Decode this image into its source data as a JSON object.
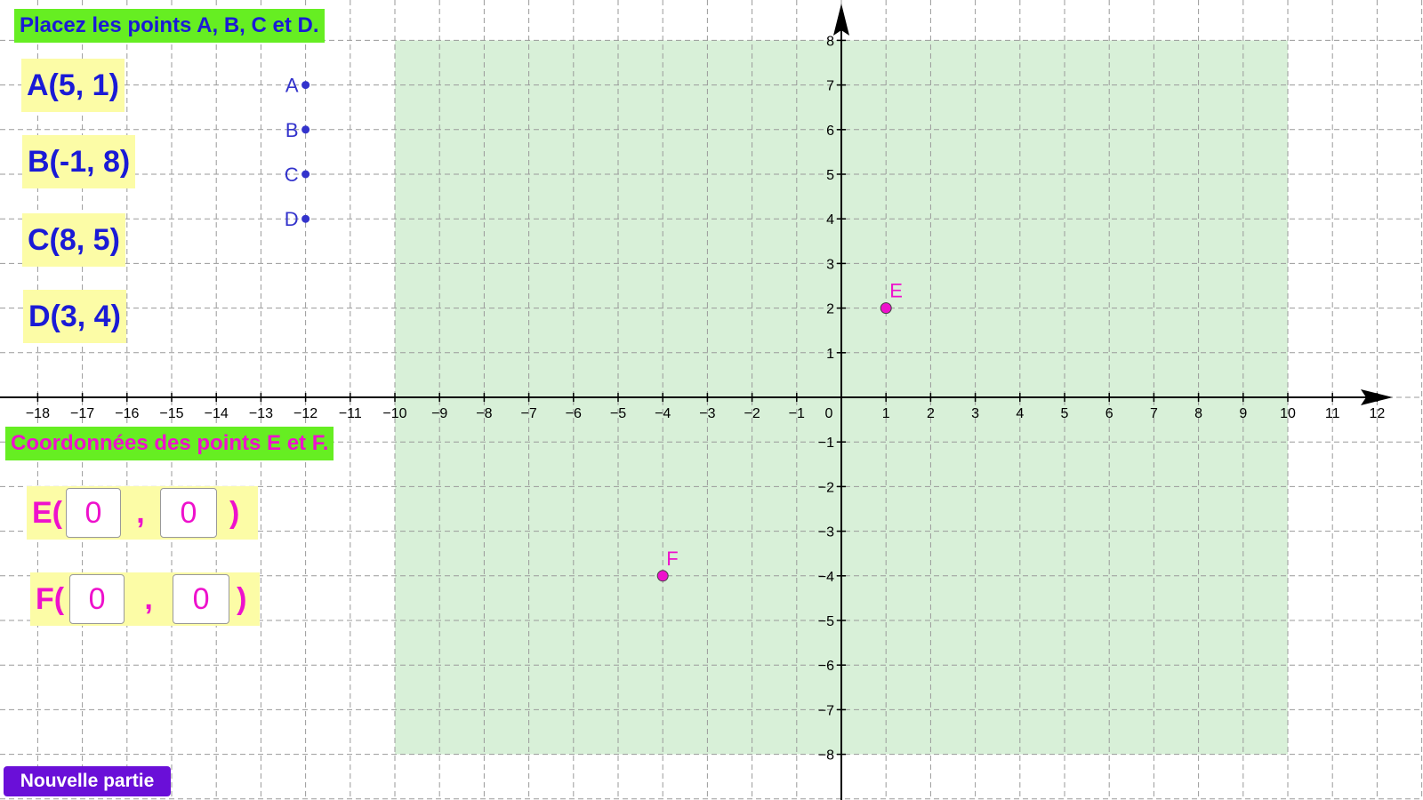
{
  "instructions": {
    "place_title": "Placez les points A, B, C et D.",
    "coord_title": "Coordonnées des points E et F."
  },
  "targets": [
    {
      "name": "A",
      "text": "A(5, 1)"
    },
    {
      "name": "B",
      "text": "B(-1, 8)"
    },
    {
      "name": "C",
      "text": "C(8, 5)"
    },
    {
      "name": "D",
      "text": "D(3, 4)"
    }
  ],
  "answers": [
    {
      "label": "E(",
      "comma": ",",
      "close": ")",
      "x_value": "0",
      "y_value": "0"
    },
    {
      "label": "F(",
      "comma": ",",
      "close": ")",
      "x_value": "0",
      "y_value": "0"
    }
  ],
  "new_game_label": "Nouvelle partie",
  "graph": {
    "x_ticks": [
      -18,
      -17,
      -16,
      -15,
      -14,
      -13,
      -12,
      -11,
      -10,
      -9,
      -8,
      -7,
      -6,
      -5,
      -4,
      -3,
      -2,
      -1,
      0,
      1,
      2,
      3,
      4,
      5,
      6,
      7,
      8,
      9,
      10,
      11,
      12
    ],
    "y_ticks": [
      -8,
      -7,
      -6,
      -5,
      -4,
      -3,
      -2,
      -1,
      1,
      2,
      3,
      4,
      5,
      6,
      7,
      8
    ],
    "zone": {
      "xmin": -10,
      "xmax": 10,
      "ymin": -8,
      "ymax": 8
    },
    "movable_points": [
      {
        "name": "A",
        "x": -12,
        "y": 7
      },
      {
        "name": "B",
        "x": -12,
        "y": 6
      },
      {
        "name": "C",
        "x": -12,
        "y": 5
      },
      {
        "name": "D",
        "x": -12,
        "y": 4
      }
    ],
    "fixed_points": [
      {
        "name": "E",
        "x": 1,
        "y": 2
      },
      {
        "name": "F",
        "x": -4,
        "y": -4
      }
    ]
  },
  "colors": {
    "title_bg": "#66ee22",
    "coord_bg": "#fcfca6",
    "blue_text": "#1a1ad6",
    "magenta": "#ee11cc",
    "zone": "#d8f0d8",
    "movable_point": "#3333cc",
    "button": "#6a0fd8"
  }
}
